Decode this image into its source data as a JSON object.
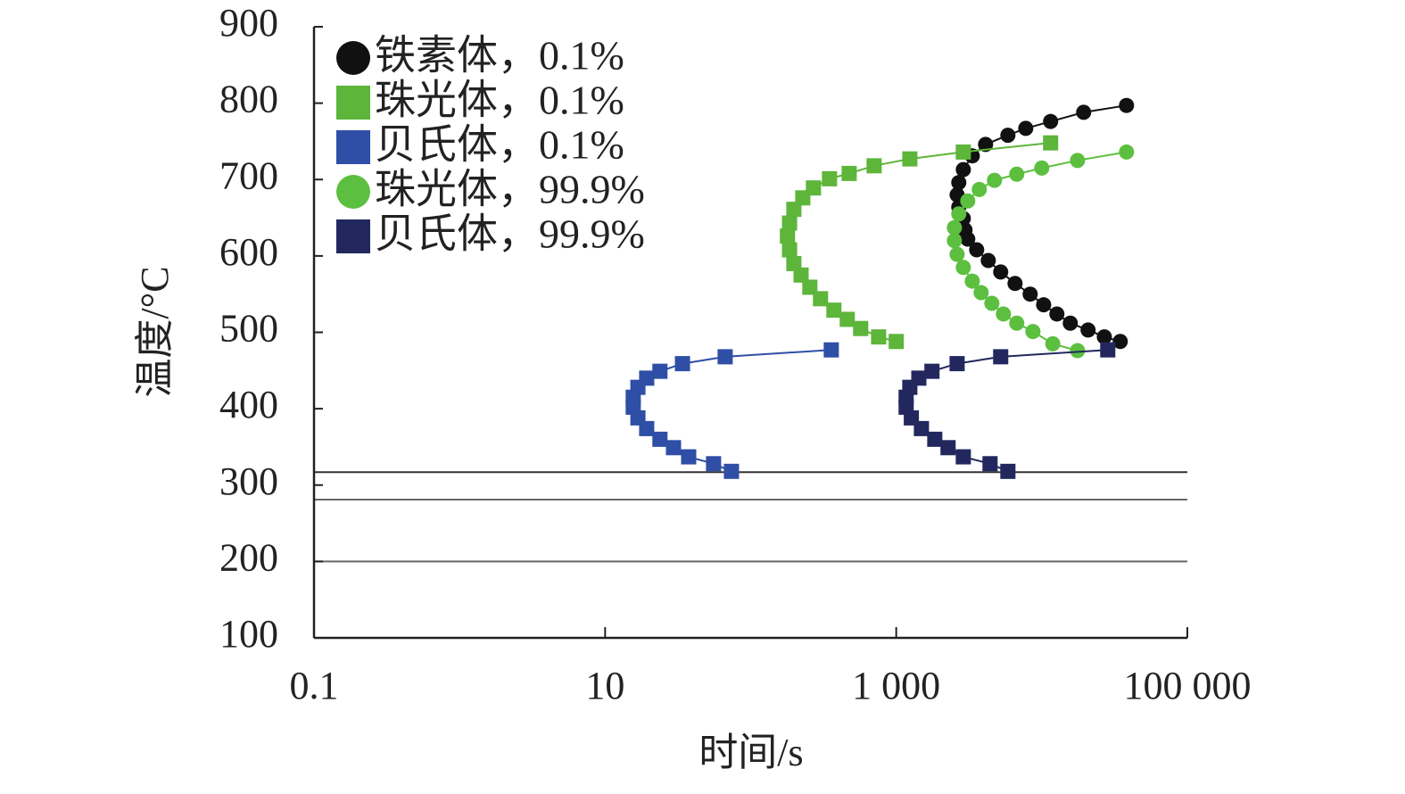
{
  "chart_data": {
    "type": "scatter-line",
    "x_label": "时间/s",
    "y_label": "温度/°C",
    "xlim": [
      0.1,
      100000
    ],
    "ylim": [
      100,
      900
    ],
    "xscale": "log",
    "xticks": [
      0.1,
      10,
      {
        "value": 1000,
        "label": "1 000"
      },
      {
        "value": 100000,
        "label": "100 000"
      }
    ],
    "yticks": [
      100,
      200,
      300,
      400,
      500,
      600,
      700,
      800,
      900
    ],
    "hlines": [
      317,
      281,
      200
    ],
    "legend": "upper left",
    "series": [
      {
        "name": "铁素体，0.1%",
        "color": "#111111",
        "marker": "circle",
        "x": [
          38200,
          19400,
          11500,
          7760,
          5850,
          4110,
          3330,
          2890,
          2690,
          2620,
          2690,
          2890,
          2970,
          3100,
          3570,
          4290,
          5220,
          6550,
          8320,
          10300,
          12700,
          15700,
          20800,
          26900,
          34600
        ],
        "values": [
          797,
          788,
          776,
          767,
          758,
          746,
          731,
          713,
          696,
          680,
          664,
          649,
          634,
          622,
          608,
          594,
          579,
          564,
          550,
          536,
          524,
          512,
          503,
          494,
          488
        ]
      },
      {
        "name": "珠光体，0.1%",
        "color": "#5db53a",
        "marker": "square",
        "x": [
          11500,
          2890,
          1240,
          705,
          475,
          348,
          270,
          228,
          198,
          185,
          179,
          185,
          198,
          222,
          255,
          302,
          373,
          461,
          570,
          757,
          1000
        ],
        "values": [
          748,
          736,
          727,
          718,
          708,
          701,
          689,
          676,
          661,
          643,
          626,
          608,
          590,
          575,
          559,
          544,
          529,
          517,
          505,
          494,
          488
        ]
      },
      {
        "name": "贝氏体，0.1%",
        "color": "#2f4ea6",
        "marker": "square",
        "x": [
          358,
          66.8,
          34,
          23.8,
          19.3,
          16.8,
          15.6,
          15.6,
          16.8,
          19.3,
          23.8,
          29.5,
          37.5,
          55.6,
          73.8
        ],
        "values": [
          477,
          468,
          459,
          449,
          440,
          428,
          415,
          402,
          388,
          374,
          360,
          349,
          337,
          328,
          318
        ]
      },
      {
        "name": "珠光体，99.9%",
        "color": "#5cbf3f",
        "marker": "circle",
        "x": [
          38200,
          17600,
          10000,
          6730,
          4730,
          3720,
          3100,
          2690,
          2510,
          2510,
          2620,
          2890,
          3330,
          3830,
          4540,
          5450,
          6730,
          8690,
          11900,
          17600
        ],
        "values": [
          736,
          725,
          715,
          707,
          699,
          687,
          672,
          655,
          637,
          620,
          602,
          585,
          567,
          552,
          538,
          524,
          512,
          501,
          485,
          476
        ]
      },
      {
        "name": "贝氏体，99.9%",
        "color": "#22285e",
        "marker": "square",
        "x": [
          28400,
          5220,
          2620,
          1760,
          1430,
          1240,
          1170,
          1170,
          1270,
          1490,
          1840,
          2270,
          2890,
          4410,
          5850
        ],
        "values": [
          477,
          468,
          459,
          449,
          440,
          428,
          415,
          402,
          388,
          374,
          360,
          349,
          337,
          328,
          318
        ]
      }
    ]
  }
}
